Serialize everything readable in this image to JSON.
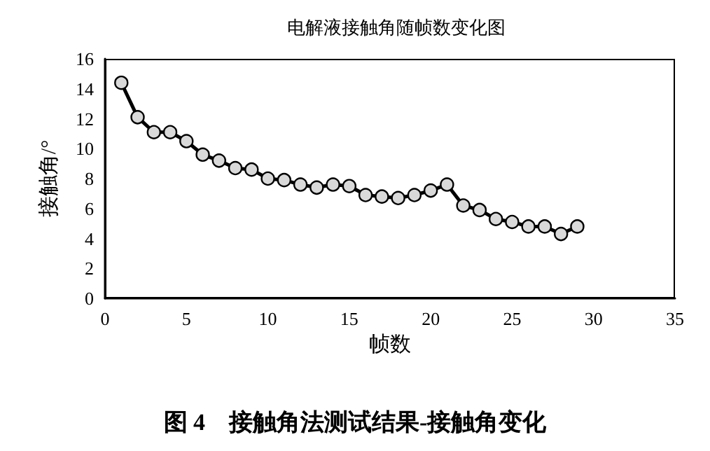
{
  "chart_data": {
    "type": "line",
    "title": "电解液接触角随帧数变化图",
    "xlabel": "帧数",
    "ylabel": "接触角/°",
    "x": [
      1,
      2,
      3,
      4,
      5,
      6,
      7,
      8,
      9,
      10,
      11,
      12,
      13,
      14,
      15,
      16,
      17,
      18,
      19,
      20,
      21,
      22,
      23,
      24,
      25,
      26,
      27,
      28,
      29
    ],
    "series": [
      {
        "color": "#000000",
        "values": [
          14.4,
          12.1,
          11.1,
          11.1,
          10.5,
          9.6,
          9.2,
          8.7,
          8.6,
          8.0,
          7.9,
          7.6,
          7.4,
          7.6,
          7.5,
          6.9,
          6.8,
          6.7,
          6.9,
          7.2,
          7.6,
          6.2,
          5.9,
          5.3,
          5.1,
          4.8,
          4.8,
          4.3,
          4.8
        ]
      }
    ],
    "xlim": [
      0,
      35
    ],
    "xticks": [
      0,
      5,
      10,
      15,
      20,
      25,
      30,
      35
    ],
    "ylim": [
      0,
      16
    ],
    "yticks": [
      0,
      2,
      4,
      6,
      8,
      10,
      12,
      14,
      16
    ],
    "grid": false,
    "marker": "circle",
    "line_style": "solid",
    "annotations": [
      "图 4　接触角法测试结果-接触角变化"
    ]
  }
}
